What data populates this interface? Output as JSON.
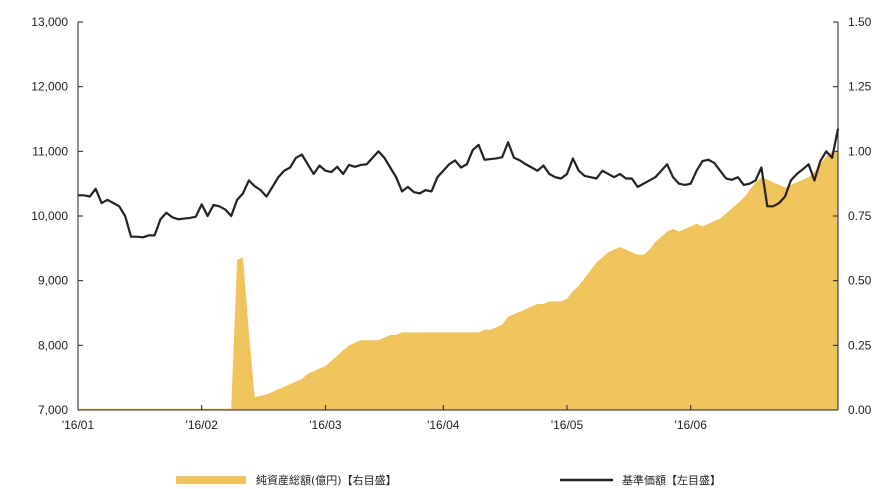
{
  "chart_data": {
    "type": "area+line",
    "title": "",
    "left_axis": {
      "ylim": [
        7000,
        13000
      ],
      "ticks": [
        7000,
        8000,
        9000,
        10000,
        11000,
        12000,
        13000
      ],
      "tick_labels": [
        "7,000",
        "8,000",
        "9,000",
        "10,000",
        "11,000",
        "12,000",
        "13,000"
      ]
    },
    "right_axis": {
      "ylim": [
        0,
        1.5
      ],
      "ticks": [
        0,
        0.25,
        0.5,
        0.75,
        1.0,
        1.25,
        1.5
      ],
      "tick_labels": [
        "0.00",
        "0.25",
        "0.50",
        "0.75",
        "1.00",
        "1.25",
        "1.50"
      ]
    },
    "x_axis": {
      "categories": [
        "'16/01",
        "'16/02",
        "'16/03",
        "'16/04",
        "'16/05",
        "'16/06"
      ],
      "tick_positions": [
        0,
        21,
        42,
        62,
        83,
        104
      ],
      "n_points": 130
    },
    "grid": false,
    "legend": {
      "placement": "bottom",
      "items": [
        {
          "label": "純資産総額(億円)【右目盛】",
          "color": "#efc45d",
          "kind": "area"
        },
        {
          "label": "基準価額【左目盛】",
          "color": "#222222",
          "kind": "line"
        }
      ]
    },
    "series": [
      {
        "name": "基準価額【左目盛】",
        "axis": "left",
        "type": "line",
        "color": "#222222",
        "values": [
          10320,
          10320,
          10300,
          10420,
          10200,
          10250,
          10200,
          10150,
          10000,
          9680,
          9680,
          9670,
          9700,
          9700,
          9950,
          10050,
          9980,
          9950,
          9960,
          9970,
          9990,
          10180,
          10000,
          10170,
          10150,
          10100,
          10000,
          10250,
          10350,
          10550,
          10460,
          10400,
          10300,
          10450,
          10600,
          10700,
          10750,
          10900,
          10950,
          10800,
          10650,
          10780,
          10700,
          10680,
          10760,
          10650,
          10790,
          10760,
          10790,
          10800,
          10900,
          11000,
          10900,
          10750,
          10600,
          10380,
          10450,
          10370,
          10350,
          10400,
          10380,
          10600,
          10700,
          10800,
          10860,
          10750,
          10800,
          11020,
          11100,
          10870,
          10880,
          10890,
          10910,
          11140,
          10900,
          10860,
          10800,
          10750,
          10700,
          10780,
          10650,
          10600,
          10580,
          10650,
          10890,
          10700,
          10620,
          10600,
          10580,
          10700,
          10650,
          10600,
          10650,
          10580,
          10580,
          10450,
          10500,
          10550,
          10600,
          10700,
          10800,
          10600,
          10500,
          10480,
          10500,
          10700,
          10850,
          10870,
          10820,
          10700,
          10580,
          10560,
          10600,
          10480,
          10500,
          10550,
          10750,
          10150,
          10150,
          10200,
          10300,
          10550,
          10650,
          10720,
          10800,
          10550,
          10850,
          11000,
          10900,
          11350
        ]
      },
      {
        "name": "純資産総額(億円)【右目盛】",
        "axis": "right",
        "type": "area",
        "color": "#efc45d",
        "values": [
          0.005,
          0.005,
          0.005,
          0.005,
          0.005,
          0.005,
          0.005,
          0.005,
          0.005,
          0.005,
          0.005,
          0.005,
          0.005,
          0.005,
          0.005,
          0.005,
          0.005,
          0.005,
          0.005,
          0.005,
          0.005,
          0.005,
          0.005,
          0.005,
          0.005,
          0.005,
          0.005,
          0.58,
          0.59,
          0.3,
          0.05,
          0.055,
          0.06,
          0.07,
          0.08,
          0.09,
          0.1,
          0.11,
          0.12,
          0.14,
          0.15,
          0.16,
          0.17,
          0.19,
          0.21,
          0.23,
          0.25,
          0.26,
          0.27,
          0.27,
          0.27,
          0.27,
          0.28,
          0.29,
          0.29,
          0.3,
          0.3,
          0.3,
          0.3,
          0.3,
          0.3,
          0.3,
          0.3,
          0.3,
          0.3,
          0.3,
          0.3,
          0.3,
          0.3,
          0.31,
          0.31,
          0.32,
          0.33,
          0.36,
          0.37,
          0.38,
          0.39,
          0.4,
          0.41,
          0.41,
          0.42,
          0.42,
          0.42,
          0.43,
          0.46,
          0.48,
          0.51,
          0.54,
          0.57,
          0.59,
          0.61,
          0.62,
          0.63,
          0.62,
          0.61,
          0.6,
          0.6,
          0.62,
          0.65,
          0.67,
          0.69,
          0.7,
          0.69,
          0.7,
          0.71,
          0.72,
          0.71,
          0.72,
          0.73,
          0.74,
          0.76,
          0.78,
          0.8,
          0.82,
          0.85,
          0.88,
          0.9,
          0.89,
          0.88,
          0.87,
          0.86,
          0.87,
          0.88,
          0.89,
          0.9,
          0.92,
          0.95,
          0.98,
          1.0,
          1.0
        ]
      }
    ]
  }
}
